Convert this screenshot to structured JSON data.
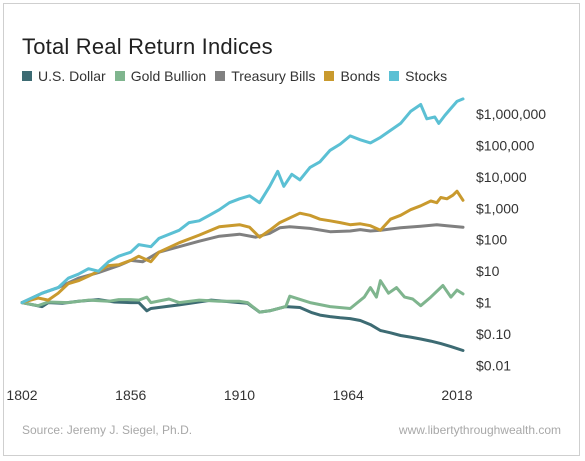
{
  "chart_data": {
    "type": "line",
    "title": "Total Real Return Indices",
    "y_scale": "log",
    "ylim": [
      0.005,
      4000000
    ],
    "xlim": [
      1802,
      2021
    ],
    "x_ticks": [
      {
        "value": 1802,
        "label": "1802"
      },
      {
        "value": 1856,
        "label": "1856"
      },
      {
        "value": 1910,
        "label": "1910"
      },
      {
        "value": 1964,
        "label": "1964"
      },
      {
        "value": 2018,
        "label": "2018"
      }
    ],
    "y_ticks": [
      {
        "value": 1000000,
        "label": "$1,000,000"
      },
      {
        "value": 100000,
        "label": "$100,000"
      },
      {
        "value": 10000,
        "label": "$10,000"
      },
      {
        "value": 1000,
        "label": "$1,000"
      },
      {
        "value": 100,
        "label": "$100"
      },
      {
        "value": 10,
        "label": "$10"
      },
      {
        "value": 1,
        "label": "$1"
      },
      {
        "value": 0.1,
        "label": "$0.10"
      },
      {
        "value": 0.01,
        "label": "$0.01"
      }
    ],
    "grid": false,
    "legend_position": "top-left",
    "series": [
      {
        "name": "U.S. Dollar",
        "color": "#3d6b73",
        "x": [
          1802,
          1812,
          1815,
          1822,
          1830,
          1840,
          1848,
          1856,
          1860,
          1864,
          1866,
          1880,
          1896,
          1910,
          1914,
          1920,
          1925,
          1933,
          1940,
          1946,
          1950,
          1955,
          1960,
          1965,
          1970,
          1975,
          1980,
          1985,
          1990,
          1995,
          2000,
          2005,
          2010,
          2015,
          2021
        ],
        "y": [
          1,
          0.75,
          1.0,
          0.95,
          1.1,
          1.25,
          1.05,
          1.0,
          1.0,
          0.55,
          0.65,
          0.85,
          1.2,
          1.0,
          0.95,
          0.5,
          0.55,
          0.75,
          0.7,
          0.48,
          0.4,
          0.36,
          0.33,
          0.31,
          0.27,
          0.2,
          0.13,
          0.11,
          0.09,
          0.08,
          0.07,
          0.06,
          0.05,
          0.04,
          0.03
        ]
      },
      {
        "name": "Gold Bullion",
        "color": "#7fb58e",
        "x": [
          1802,
          1810,
          1815,
          1825,
          1835,
          1845,
          1850,
          1856,
          1860,
          1864,
          1866,
          1875,
          1880,
          1890,
          1900,
          1910,
          1914,
          1920,
          1925,
          1933,
          1935,
          1945,
          1955,
          1965,
          1972,
          1975,
          1978,
          1980,
          1984,
          1988,
          1992,
          1996,
          2000,
          2005,
          2011,
          2015,
          2018,
          2021
        ],
        "y": [
          1,
          0.8,
          1.05,
          1.0,
          1.2,
          1.1,
          1.25,
          1.25,
          1.2,
          1.5,
          1.0,
          1.3,
          1.0,
          1.2,
          1.1,
          1.1,
          1.0,
          0.5,
          0.55,
          0.75,
          1.6,
          1.0,
          0.75,
          0.65,
          1.5,
          3.0,
          1.5,
          5.0,
          2.0,
          3.0,
          1.5,
          1.3,
          0.8,
          1.5,
          3.5,
          1.5,
          2.5,
          1.9
        ]
      },
      {
        "name": "Treasury Bills",
        "color": "#808080",
        "x": [
          1802,
          1812,
          1820,
          1830,
          1840,
          1850,
          1856,
          1862,
          1870,
          1880,
          1890,
          1900,
          1910,
          1918,
          1925,
          1930,
          1935,
          1945,
          1955,
          1965,
          1970,
          1975,
          1980,
          1985,
          1990,
          2000,
          2008,
          2013,
          2021
        ],
        "y": [
          1,
          2.0,
          3.0,
          6.0,
          9.0,
          15,
          22,
          20,
          40,
          60,
          90,
          130,
          150,
          120,
          160,
          240,
          260,
          230,
          180,
          190,
          210,
          190,
          200,
          220,
          240,
          270,
          300,
          280,
          250
        ]
      },
      {
        "name": "Bonds",
        "color": "#c99a2e",
        "x": [
          1802,
          1810,
          1815,
          1820,
          1825,
          1830,
          1835,
          1840,
          1845,
          1850,
          1856,
          1860,
          1866,
          1870,
          1880,
          1890,
          1900,
          1910,
          1915,
          1920,
          1925,
          1930,
          1940,
          1945,
          1950,
          1955,
          1960,
          1965,
          1970,
          1975,
          1980,
          1985,
          1990,
          1995,
          2000,
          2005,
          2008,
          2010,
          2013,
          2016,
          2018,
          2021
        ],
        "y": [
          1,
          1.4,
          1.2,
          2.0,
          4.0,
          5.0,
          7.0,
          10,
          15,
          16,
          22,
          30,
          20,
          40,
          80,
          140,
          260,
          300,
          250,
          120,
          200,
          350,
          700,
          600,
          450,
          400,
          350,
          300,
          320,
          280,
          200,
          450,
          600,
          900,
          1200,
          1700,
          1500,
          2200,
          2000,
          2600,
          3500,
          1800
        ]
      },
      {
        "name": "Stocks",
        "color": "#5bc0d4",
        "x": [
          1802,
          1812,
          1820,
          1825,
          1830,
          1835,
          1840,
          1845,
          1850,
          1856,
          1860,
          1866,
          1870,
          1880,
          1885,
          1890,
          1895,
          1900,
          1905,
          1910,
          1915,
          1920,
          1925,
          1929,
          1932,
          1936,
          1940,
          1945,
          1950,
          1955,
          1960,
          1965,
          1970,
          1975,
          1980,
          1985,
          1990,
          1995,
          2000,
          2003,
          2007,
          2009,
          2012,
          2015,
          2018,
          2021
        ],
        "y": [
          1,
          2,
          3,
          6,
          8,
          12,
          10,
          20,
          30,
          40,
          70,
          60,
          110,
          200,
          350,
          400,
          600,
          900,
          1500,
          2000,
          2500,
          1500,
          5000,
          15000,
          5000,
          12000,
          8000,
          20000,
          30000,
          70000,
          110000,
          200000,
          150000,
          120000,
          180000,
          300000,
          500000,
          1200000,
          2000000,
          700000,
          800000,
          500000,
          900000,
          1500000,
          2500000,
          3000000
        ]
      }
    ]
  },
  "footer": {
    "source": "Source: Jeremy J. Siegel, Ph.D.",
    "website": "www.libertythroughwealth.com"
  }
}
